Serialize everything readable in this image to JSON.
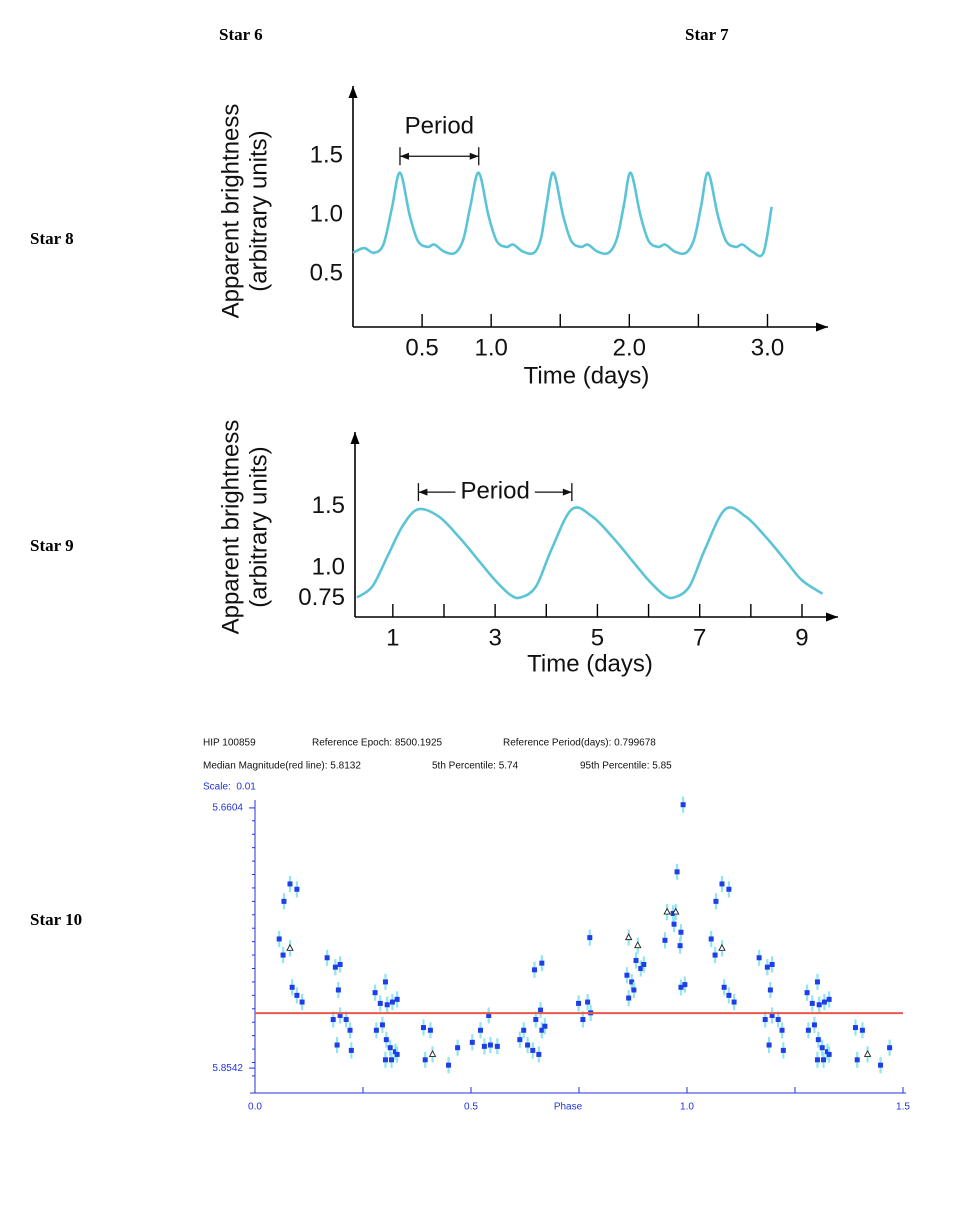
{
  "star_labels": [
    "Star 6",
    "Star 7",
    "Star 8",
    "Star 9",
    "Star 10"
  ],
  "chart_data": [
    {
      "type": "line",
      "ylabel": [
        "Apparent brightness",
        "(arbitrary units)"
      ],
      "xlabel": "Time (days)",
      "xlim": [
        0,
        3.38
      ],
      "ylim": [
        0.05,
        2.02
      ],
      "xticks": [
        0.5,
        {
          "value": 1,
          "label": "1.0"
        },
        {
          "value": 2,
          "label": "2.0"
        },
        {
          "value": 3,
          "label": "3.0"
        }
      ],
      "xminorticks": [
        1.5,
        2.5
      ],
      "yticks": [
        0.5,
        {
          "value": 1,
          "label": "1.0"
        },
        1.5
      ],
      "color": "#5bc4d6",
      "x": [
        0,
        0.08,
        0.15,
        0.22,
        0.28,
        0.34,
        0.41,
        0.47,
        0.54,
        0.59,
        0.66,
        0.74,
        0.8,
        0.85,
        0.91,
        0.98,
        1.04,
        1.11,
        1.16,
        1.23,
        1.31,
        1.36,
        1.4,
        1.45,
        1.52,
        1.58,
        1.65,
        1.7,
        1.77,
        1.85,
        1.91,
        1.96,
        2.01,
        2.08,
        2.14,
        2.21,
        2.26,
        2.33,
        2.41,
        2.47,
        2.52,
        2.57,
        2.64,
        2.7,
        2.77,
        2.82,
        2.89,
        2.97,
        3.03
      ],
      "values": [
        0.68,
        0.72,
        0.68,
        0.75,
        1.05,
        1.36,
        1.0,
        0.78,
        0.73,
        0.75,
        0.69,
        0.68,
        0.8,
        1.08,
        1.36,
        1.0,
        0.78,
        0.73,
        0.75,
        0.69,
        0.68,
        0.8,
        1.08,
        1.36,
        1.0,
        0.78,
        0.73,
        0.75,
        0.69,
        0.68,
        0.8,
        1.08,
        1.36,
        1.0,
        0.78,
        0.73,
        0.75,
        0.69,
        0.68,
        0.8,
        1.08,
        1.36,
        1.0,
        0.78,
        0.73,
        0.75,
        0.69,
        0.68,
        1.07
      ],
      "annotations": [
        {
          "text": "Period",
          "x": [
            0.34,
            0.91
          ],
          "y": 1.5,
          "position": "above"
        }
      ]
    },
    {
      "type": "line",
      "ylabel": [
        "Apparent brightness",
        "(arbitrary units)"
      ],
      "xlabel": "Time (days)",
      "xlim": [
        0.26,
        9.45
      ],
      "ylim": [
        0.6,
        2.07
      ],
      "xticks": [
        1,
        3,
        5,
        7,
        9
      ],
      "xminorticks": [
        2,
        4,
        6,
        8
      ],
      "yticks": [
        0.75,
        {
          "value": 1,
          "label": "1.0"
        },
        1.5
      ],
      "color": "#5bc4d6",
      "x": [
        0.3,
        0.6,
        0.9,
        1.2,
        1.5,
        1.9,
        2.3,
        2.7,
        3.0,
        3.3,
        3.5,
        3.8,
        4.1,
        4.5,
        4.9,
        5.3,
        5.7,
        6.0,
        6.3,
        6.5,
        6.8,
        7.1,
        7.5,
        7.9,
        8.3,
        8.7,
        9.0,
        9.4
      ],
      "values": [
        0.76,
        0.85,
        1.1,
        1.35,
        1.48,
        1.42,
        1.25,
        1.05,
        0.9,
        0.78,
        0.76,
        0.85,
        1.15,
        1.48,
        1.42,
        1.25,
        1.05,
        0.9,
        0.78,
        0.76,
        0.85,
        1.15,
        1.48,
        1.42,
        1.25,
        1.05,
        0.9,
        0.79
      ],
      "annotations": [
        {
          "text": "Period",
          "x": [
            1.5,
            4.5
          ],
          "y": 1.62,
          "position": "inline"
        }
      ]
    },
    {
      "type": "scatter",
      "header": [
        [
          "HIP 100859",
          "Reference Epoch: 8500.1925",
          "Reference Period(days): 0.799678"
        ],
        [
          "Median Magnitude(red line): 5.8132",
          "5th Percentile: 5.74",
          "95th Percentile: 5.85"
        ]
      ],
      "scale_label": "Scale:  0.01",
      "xlabel": "Phase",
      "xlim": [
        0,
        1.5
      ],
      "ylim": [
        5.6545,
        5.8705
      ],
      "y_inverted": true,
      "xticks": [
        {
          "value": 0,
          "label": "0.0"
        },
        0.5,
        {
          "value": 1,
          "label": "1.0"
        },
        1.5
      ],
      "xminorticks": [
        0.25,
        0.75,
        1.25
      ],
      "yticks": [
        5.6604,
        5.8542
      ],
      "yminorticks": [
        5.67,
        5.68,
        5.69,
        5.7,
        5.71,
        5.72,
        5.73,
        5.74,
        5.75,
        5.76,
        5.77,
        5.78,
        5.79,
        5.8,
        5.81,
        5.82,
        5.83,
        5.84,
        5.85,
        5.86
      ],
      "median_line": {
        "value": 5.8132,
        "color": "#e8584f"
      },
      "error_bar": 0.006,
      "error_color": "#8fe6ef",
      "series": [
        {
          "marker": "square",
          "color": "#1f3de8",
          "x": [
            0.056,
            0.065,
            0.067,
            0.081,
            0.097,
            0.086,
            0.097,
            0.109,
            0.167,
            0.186,
            0.197,
            0.193,
            0.181,
            0.197,
            0.211,
            0.19,
            0.22,
            0.223,
            0.278,
            0.29,
            0.302,
            0.306,
            0.318,
            0.329,
            0.281,
            0.295,
            0.304,
            0.313,
            0.325,
            0.316,
            0.302,
            0.329,
            0.39,
            0.406,
            0.394,
            0.448,
            0.469,
            0.503,
            0.522,
            0.541,
            0.545,
            0.561,
            0.531,
            0.613,
            0.622,
            0.631,
            0.643,
            0.65,
            0.661,
            0.664,
            0.671,
            0.657,
            0.647,
            0.664,
            0.749,
            0.759,
            0.77,
            0.777,
            0.775,
            0.861,
            0.872,
            0.882,
            0.893,
            0.865,
            0.877,
            0.9,
            0.949,
            0.97,
            0.977,
            0.968,
            0.986,
            0.984,
            0.986,
            0.995,
            0.991,
            1.056,
            1.065,
            1.067,
            1.081,
            1.097,
            1.086,
            1.097,
            1.109,
            1.167,
            1.186,
            1.197,
            1.193,
            1.181,
            1.197,
            1.211,
            1.19,
            1.22,
            1.223,
            1.278,
            1.29,
            1.302,
            1.306,
            1.318,
            1.329,
            1.281,
            1.295,
            1.304,
            1.313,
            1.325,
            1.316,
            1.302,
            1.329,
            1.39,
            1.406,
            1.394,
            1.448,
            1.469
          ],
          "values": [
            5.758,
            5.77,
            5.73,
            5.717,
            5.721,
            5.794,
            5.8,
            5.805,
            5.772,
            5.779,
            5.777,
            5.796,
            5.818,
            5.815,
            5.818,
            5.837,
            5.826,
            5.841,
            5.798,
            5.806,
            5.79,
            5.807,
            5.805,
            5.803,
            5.826,
            5.822,
            5.833,
            5.839,
            5.842,
            5.848,
            5.848,
            5.844,
            5.824,
            5.826,
            5.848,
            5.852,
            5.839,
            5.835,
            5.826,
            5.815,
            5.837,
            5.838,
            5.838,
            5.833,
            5.826,
            5.837,
            5.841,
            5.818,
            5.811,
            5.826,
            5.823,
            5.844,
            5.781,
            5.776,
            5.806,
            5.818,
            5.805,
            5.813,
            5.757,
            5.785,
            5.79,
            5.774,
            5.78,
            5.802,
            5.796,
            5.777,
            5.759,
            5.747,
            5.708,
            5.739,
            5.753,
            5.763,
            5.794,
            5.792,
            5.658,
            5.758,
            5.77,
            5.73,
            5.717,
            5.721,
            5.794,
            5.8,
            5.805,
            5.772,
            5.779,
            5.777,
            5.796,
            5.818,
            5.815,
            5.818,
            5.837,
            5.826,
            5.841,
            5.798,
            5.806,
            5.79,
            5.807,
            5.805,
            5.803,
            5.826,
            5.822,
            5.833,
            5.839,
            5.842,
            5.848,
            5.848,
            5.844,
            5.824,
            5.826,
            5.848,
            5.852,
            5.839
          ]
        },
        {
          "marker": "triangle",
          "color": "#222222",
          "x": [
            0.081,
            0.411,
            0.865,
            0.886,
            0.954,
            0.974,
            1.081,
            1.418
          ],
          "values": [
            5.765,
            5.844,
            5.757,
            5.763,
            5.738,
            5.738,
            5.765,
            5.844
          ]
        }
      ]
    }
  ]
}
